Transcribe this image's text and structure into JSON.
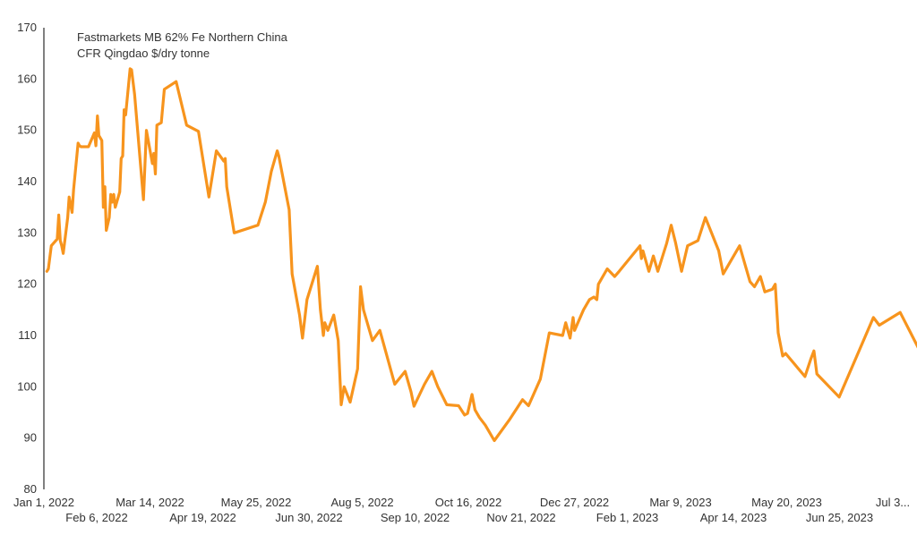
{
  "chart_data": {
    "type": "line",
    "title_lines": [
      "Fastmarkets MB 62% Fe Northern China",
      "CFR Qingdao $/dry tonne"
    ],
    "xlabel": "",
    "ylabel": "",
    "ylim": [
      80,
      170
    ],
    "yticks": [
      80,
      90,
      100,
      110,
      120,
      130,
      140,
      150,
      160,
      170
    ],
    "xticks_top": [
      "Jan 1, 2022",
      "Mar 14, 2022",
      "May 25, 2022",
      "Aug 5, 2022",
      "Oct 16, 2022",
      "Dec 27, 2022",
      "Mar 9, 2023",
      "May 20, 2023",
      "Jul 3..."
    ],
    "xticks_bottom": [
      "Feb 6, 2022",
      "Apr 19, 2022",
      "Jun 30, 2022",
      "Sep 10, 2022",
      "Nov 21, 2022",
      "Feb 1, 2023",
      "Apr 14, 2023",
      "Jun 25, 2023"
    ],
    "grid": false,
    "legend": "none",
    "series": [
      {
        "color": "#F7941D",
        "points": [
          [
            "2022-01-03",
            122.5
          ],
          [
            "2022-01-04",
            123
          ],
          [
            "2022-01-06",
            127.5
          ],
          [
            "2022-01-10",
            128.8
          ],
          [
            "2022-01-11",
            133.5
          ],
          [
            "2022-01-12",
            128.5
          ],
          [
            "2022-01-13",
            127.5
          ],
          [
            "2022-01-14",
            126
          ],
          [
            "2022-01-17",
            133
          ],
          [
            "2022-01-18",
            137
          ],
          [
            "2022-01-20",
            134
          ],
          [
            "2022-01-21",
            138.5
          ],
          [
            "2022-01-24",
            147.5
          ],
          [
            "2022-01-25",
            147
          ],
          [
            "2022-01-26",
            146.8
          ],
          [
            "2022-01-31",
            146.8
          ],
          [
            "2022-02-04",
            149.5
          ],
          [
            "2022-02-05",
            147
          ],
          [
            "2022-02-06",
            152.8
          ],
          [
            "2022-02-07",
            149
          ],
          [
            "2022-02-09",
            148
          ],
          [
            "2022-02-10",
            135
          ],
          [
            "2022-02-11",
            139
          ],
          [
            "2022-02-12",
            130.5
          ],
          [
            "2022-02-14",
            133
          ],
          [
            "2022-02-15",
            137.5
          ],
          [
            "2022-02-16",
            136
          ],
          [
            "2022-02-17",
            137.5
          ],
          [
            "2022-02-18",
            135
          ],
          [
            "2022-02-21",
            138
          ],
          [
            "2022-02-22",
            144.5
          ],
          [
            "2022-02-23",
            145
          ],
          [
            "2022-02-24",
            154
          ],
          [
            "2022-02-25",
            153
          ],
          [
            "2022-02-28",
            162
          ],
          [
            "2022-03-01",
            161.8
          ],
          [
            "2022-03-03",
            157
          ],
          [
            "2022-03-09",
            136.5
          ],
          [
            "2022-03-11",
            150
          ],
          [
            "2022-03-15",
            143.5
          ],
          [
            "2022-03-16",
            145.5
          ],
          [
            "2022-03-17",
            141.5
          ],
          [
            "2022-03-18",
            151
          ],
          [
            "2022-03-21",
            151.5
          ],
          [
            "2022-03-23",
            158
          ],
          [
            "2022-03-31",
            159.5
          ],
          [
            "2022-04-07",
            151
          ],
          [
            "2022-04-15",
            149.8
          ],
          [
            "2022-04-22",
            137
          ],
          [
            "2022-04-27",
            146
          ],
          [
            "2022-05-02",
            144
          ],
          [
            "2022-05-03",
            144.5
          ],
          [
            "2022-05-04",
            139
          ],
          [
            "2022-05-09",
            130
          ],
          [
            "2022-05-25",
            131.5
          ],
          [
            "2022-05-30",
            136
          ],
          [
            "2022-06-03",
            142
          ],
          [
            "2022-06-07",
            146
          ],
          [
            "2022-06-08",
            145
          ],
          [
            "2022-06-15",
            134.5
          ],
          [
            "2022-06-17",
            122
          ],
          [
            "2022-06-22",
            114
          ],
          [
            "2022-06-24",
            109.5
          ],
          [
            "2022-06-27",
            117
          ],
          [
            "2022-07-04",
            123.5
          ],
          [
            "2022-07-06",
            115
          ],
          [
            "2022-07-08",
            110
          ],
          [
            "2022-07-09",
            112.5
          ],
          [
            "2022-07-11",
            111
          ],
          [
            "2022-07-13",
            112.5
          ],
          [
            "2022-07-15",
            114
          ],
          [
            "2022-07-18",
            109
          ],
          [
            "2022-07-20",
            96.5
          ],
          [
            "2022-07-22",
            100
          ],
          [
            "2022-07-26",
            97
          ],
          [
            "2022-07-31",
            103.5
          ],
          [
            "2022-08-02",
            119.5
          ],
          [
            "2022-08-04",
            115
          ],
          [
            "2022-08-10",
            109
          ],
          [
            "2022-08-15",
            111
          ],
          [
            "2022-08-25",
            100.5
          ],
          [
            "2022-09-01",
            103
          ],
          [
            "2022-09-05",
            99
          ],
          [
            "2022-09-07",
            96.2
          ],
          [
            "2022-09-14",
            100.5
          ],
          [
            "2022-09-19",
            103
          ],
          [
            "2022-09-23",
            100
          ],
          [
            "2022-09-29",
            96.5
          ],
          [
            "2022-10-07",
            96.3
          ],
          [
            "2022-10-11",
            94.5
          ],
          [
            "2022-10-13",
            94.8
          ],
          [
            "2022-10-16",
            98.5
          ],
          [
            "2022-10-18",
            95.5
          ],
          [
            "2022-10-21",
            94
          ],
          [
            "2022-10-25",
            92.5
          ],
          [
            "2022-10-31",
            89.5
          ],
          [
            "2022-11-10",
            93.5
          ],
          [
            "2022-11-19",
            97.5
          ],
          [
            "2022-11-23",
            96.3
          ],
          [
            "2022-12-01",
            101.5
          ],
          [
            "2022-12-07",
            110.5
          ],
          [
            "2022-12-16",
            110
          ],
          [
            "2022-12-18",
            112.5
          ],
          [
            "2022-12-21",
            109.5
          ],
          [
            "2022-12-23",
            113.5
          ],
          [
            "2022-12-24",
            111
          ],
          [
            "2022-12-30",
            115
          ],
          [
            "2023-01-03",
            117
          ],
          [
            "2023-01-06",
            117.5
          ],
          [
            "2023-01-08",
            117
          ],
          [
            "2023-01-09",
            120
          ],
          [
            "2023-01-15",
            123
          ],
          [
            "2023-01-20",
            121.5
          ],
          [
            "2023-01-23",
            122.5
          ],
          [
            "2023-02-06",
            127.5
          ],
          [
            "2023-02-07",
            125
          ],
          [
            "2023-02-08",
            126.5
          ],
          [
            "2023-02-12",
            122.5
          ],
          [
            "2023-02-15",
            125.5
          ],
          [
            "2023-02-18",
            122.5
          ],
          [
            "2023-02-24",
            128
          ],
          [
            "2023-02-27",
            131.5
          ],
          [
            "2023-03-02",
            128
          ],
          [
            "2023-03-06",
            122.5
          ],
          [
            "2023-03-10",
            127.5
          ],
          [
            "2023-03-17",
            128.5
          ],
          [
            "2023-03-22",
            133
          ],
          [
            "2023-03-31",
            126.5
          ],
          [
            "2023-04-03",
            122
          ],
          [
            "2023-04-14",
            127.5
          ],
          [
            "2023-04-21",
            120.5
          ],
          [
            "2023-04-24",
            119.5
          ],
          [
            "2023-04-28",
            121.5
          ],
          [
            "2023-05-01",
            118.5
          ],
          [
            "2023-05-06",
            119
          ],
          [
            "2023-05-08",
            120
          ],
          [
            "2023-05-10",
            110.5
          ],
          [
            "2023-05-13",
            106
          ],
          [
            "2023-05-15",
            106.5
          ],
          [
            "2023-05-28",
            102
          ],
          [
            "2023-06-01",
            105.5
          ],
          [
            "2023-06-03",
            107
          ],
          [
            "2023-06-05",
            102.5
          ],
          [
            "2023-06-20",
            98
          ],
          [
            "2023-07-13",
            113.5
          ],
          [
            "2023-07-17",
            112
          ],
          [
            "2023-07-31",
            114.5
          ],
          [
            "2023-08-15",
            106
          ]
        ]
      }
    ]
  }
}
